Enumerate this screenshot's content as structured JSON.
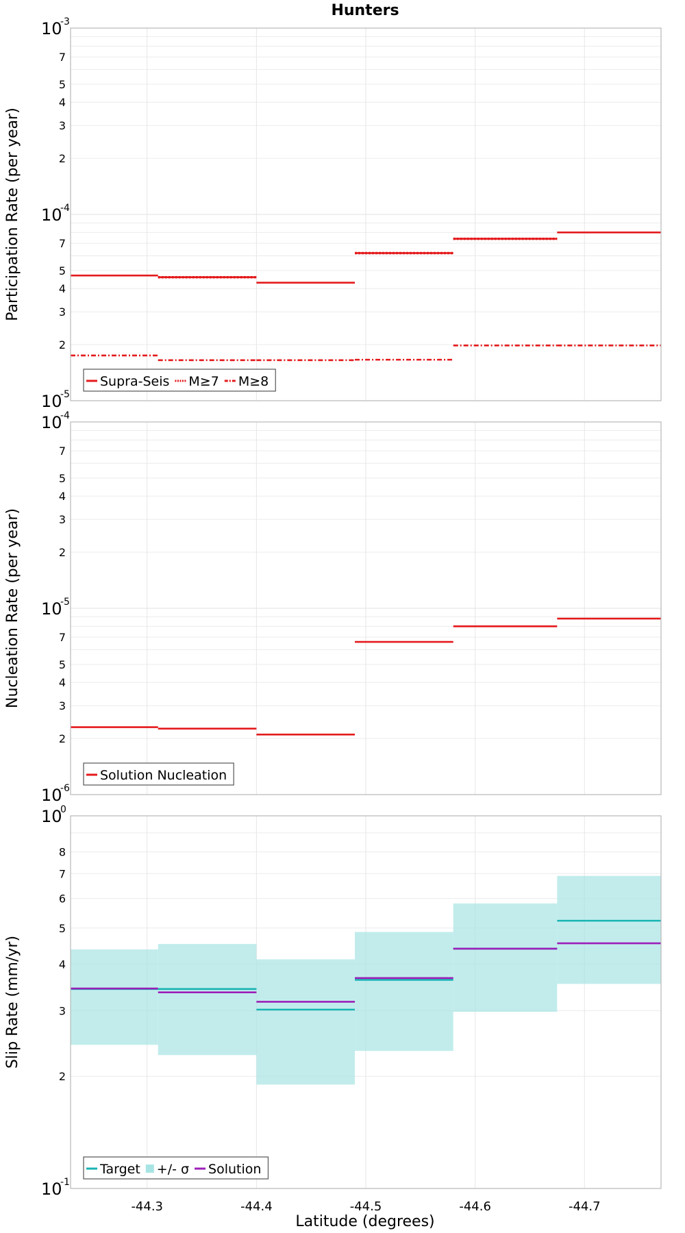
{
  "chart_data": [
    {
      "type": "line",
      "title": "Hunters",
      "ylabel": "Participation Rate (per year)",
      "yscale": "log",
      "ylim": [
        1e-05,
        0.001
      ],
      "xlim": [
        -44.23,
        -44.77
      ],
      "grid": true,
      "legend_position": "bottom-left",
      "decades": [
        {
          "base": "10",
          "exp": "-5"
        },
        {
          "base": "10",
          "exp": "-4"
        },
        {
          "base": "10",
          "exp": "-3"
        }
      ],
      "minor_ticks": [
        {
          "label": "2",
          "value": 2e-05
        },
        {
          "label": "3",
          "value": 3e-05
        },
        {
          "label": "4",
          "value": 4e-05
        },
        {
          "label": "5",
          "value": 5e-05
        },
        {
          "label": "7",
          "value": 7e-05
        },
        {
          "label": "2",
          "value": 0.0002
        },
        {
          "label": "3",
          "value": 0.0003
        },
        {
          "label": "4",
          "value": 0.0004
        },
        {
          "label": "5",
          "value": 0.0005
        },
        {
          "label": "7",
          "value": 0.0007
        }
      ],
      "series": [
        {
          "name": "Supra-Seis",
          "color": "#e41a1c",
          "dash": "solid",
          "values": [
            4.7e-05,
            4.6e-05,
            4.3e-05,
            6.2e-05,
            7.4e-05,
            8e-05
          ]
        },
        {
          "name": "M≥7",
          "color": "#e41a1c",
          "dash": "dotted",
          "values": [
            null,
            4.6e-05,
            null,
            6.2e-05,
            7.4e-05,
            null
          ]
        },
        {
          "name": "M≥8",
          "color": "#e41a1c",
          "dash": "dashdot",
          "values": [
            1.75e-05,
            1.65e-05,
            1.65e-05,
            1.66e-05,
            1.98e-05,
            1.98e-05
          ]
        }
      ]
    },
    {
      "type": "line",
      "ylabel": "Nucleation Rate (per year)",
      "yscale": "log",
      "ylim": [
        1e-06,
        0.0001
      ],
      "xlim": [
        -44.23,
        -44.77
      ],
      "grid": true,
      "legend_position": "bottom-left",
      "decades": [
        {
          "base": "10",
          "exp": "-6"
        },
        {
          "base": "10",
          "exp": "-5"
        },
        {
          "base": "10",
          "exp": "-4"
        }
      ],
      "minor_ticks": [
        {
          "label": "2",
          "value": 2e-06
        },
        {
          "label": "3",
          "value": 3e-06
        },
        {
          "label": "4",
          "value": 4e-06
        },
        {
          "label": "5",
          "value": 5e-06
        },
        {
          "label": "7",
          "value": 7e-06
        },
        {
          "label": "2",
          "value": 2e-05
        },
        {
          "label": "3",
          "value": 3e-05
        },
        {
          "label": "4",
          "value": 4e-05
        },
        {
          "label": "5",
          "value": 5e-05
        },
        {
          "label": "7",
          "value": 7e-05
        }
      ],
      "series": [
        {
          "name": "Solution Nucleation",
          "color": "#e41a1c",
          "dash": "solid",
          "values": [
            2.3e-06,
            2.26e-06,
            2.1e-06,
            6.6e-06,
            8e-06,
            8.8e-06
          ]
        }
      ]
    },
    {
      "type": "line",
      "ylabel": "Slip Rate (mm/yr)",
      "xlabel": "Latitude (degrees)",
      "yscale": "log",
      "ylim": [
        0.1,
        1.0
      ],
      "xlim": [
        -44.23,
        -44.77
      ],
      "grid": true,
      "legend_position": "bottom-left",
      "decades": [
        {
          "base": "10",
          "exp": "-1"
        },
        {
          "base": "10",
          "exp": "0"
        }
      ],
      "minor_ticks": [
        {
          "label": "2",
          "value": 0.2
        },
        {
          "label": "3",
          "value": 0.3
        },
        {
          "label": "4",
          "value": 0.4
        },
        {
          "label": "5",
          "value": 0.5
        },
        {
          "label": "6",
          "value": 0.6
        },
        {
          "label": "7",
          "value": 0.7
        },
        {
          "label": "8",
          "value": 0.8
        }
      ],
      "series": [
        {
          "name": "Target",
          "color": "#17b3b3",
          "dash": "solid",
          "values": [
            0.343,
            0.343,
            0.302,
            0.363,
            0.44,
            0.523
          ]
        },
        {
          "name": "+/- σ",
          "color": "#a8e4e4",
          "kind": "band",
          "lower": [
            0.243,
            0.228,
            0.19,
            0.234,
            0.298,
            0.354
          ],
          "upper": [
            0.438,
            0.453,
            0.412,
            0.488,
            0.582,
            0.69
          ]
        },
        {
          "name": "Solution",
          "color": "#9b1fb8",
          "dash": "solid",
          "values": [
            0.344,
            0.336,
            0.317,
            0.367,
            0.44,
            0.455
          ]
        }
      ]
    }
  ],
  "bins": [
    [
      -44.23,
      -44.31
    ],
    [
      -44.31,
      -44.4
    ],
    [
      -44.4,
      -44.49
    ],
    [
      -44.49,
      -44.58
    ],
    [
      -44.58,
      -44.675
    ],
    [
      -44.675,
      -44.77
    ]
  ],
  "x_ticks": [
    {
      "label": "-44.3",
      "value": -44.3
    },
    {
      "label": "-44.4",
      "value": -44.4
    },
    {
      "label": "-44.5",
      "value": -44.5
    },
    {
      "label": "-44.6",
      "value": -44.6
    },
    {
      "label": "-44.7",
      "value": -44.7
    }
  ]
}
